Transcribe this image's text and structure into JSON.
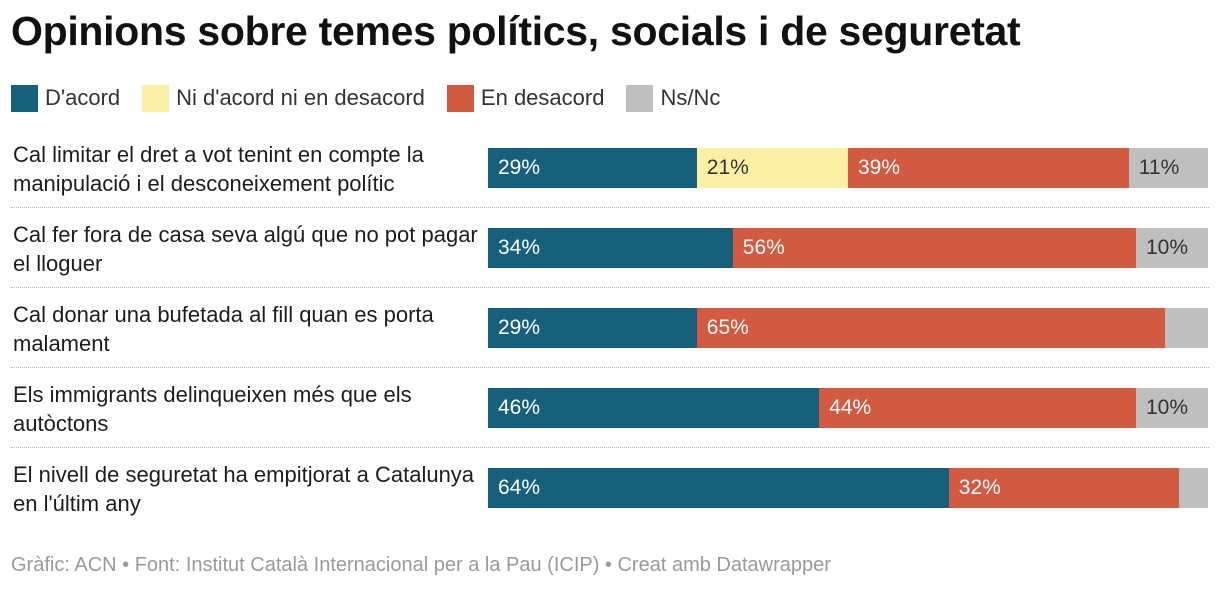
{
  "title": "Opinions sobre temes polítics, socials i de seguretat",
  "footer": "Gràfic: ACN • Font: Institut Català Internacional per a la Pau (ICIP) • Creat amb Datawrapper",
  "legend": [
    {
      "name": "D'acord",
      "color": "#17607b"
    },
    {
      "name": "Ni d'acord ni en desacord",
      "color": "#fcf0a6"
    },
    {
      "name": "En desacord",
      "color": "#d25a41"
    },
    {
      "name": "Ns/Nc",
      "color": "#bfbfbf"
    }
  ],
  "chart_data": {
    "type": "bar",
    "orientation": "horizontal",
    "stacked": true,
    "unit": "%",
    "xlim": [
      0,
      100
    ],
    "categories": [
      "Cal limitar el dret a vot tenint en compte la manipulació i el desconeixement polític",
      "Cal fer fora de casa seva algú que no pot pagar el lloguer",
      "Cal donar una bufetada al fill quan es porta malament",
      "Els immigrants delinqueixen més que els autòctons",
      "El nivell de seguretat ha empitjorat a Catalunya en l'últim any"
    ],
    "series": [
      {
        "name": "D'acord",
        "color": "#17607b",
        "text_color": "#ffffff",
        "values": [
          29,
          34,
          29,
          46,
          64
        ]
      },
      {
        "name": "Ni d'acord ni en desacord",
        "color": "#fcf0a6",
        "text_color": "#333333",
        "values": [
          21,
          0,
          0,
          0,
          0
        ]
      },
      {
        "name": "En desacord",
        "color": "#d25a41",
        "text_color": "#ffffff",
        "values": [
          39,
          56,
          65,
          44,
          32
        ]
      },
      {
        "name": "Ns/Nc",
        "color": "#bfbfbf",
        "text_color": "#333333",
        "values": [
          11,
          10,
          6,
          10,
          4
        ]
      }
    ],
    "data_labels": [
      [
        "29%",
        "21%",
        "39%",
        "11%"
      ],
      [
        "34%",
        "",
        "56%",
        "10%"
      ],
      [
        "29%",
        "",
        "65%",
        ""
      ],
      [
        "46%",
        "",
        "44%",
        "10%"
      ],
      [
        "64%",
        "",
        "32%",
        ""
      ]
    ],
    "legend_position": "top-left",
    "grid": false
  }
}
